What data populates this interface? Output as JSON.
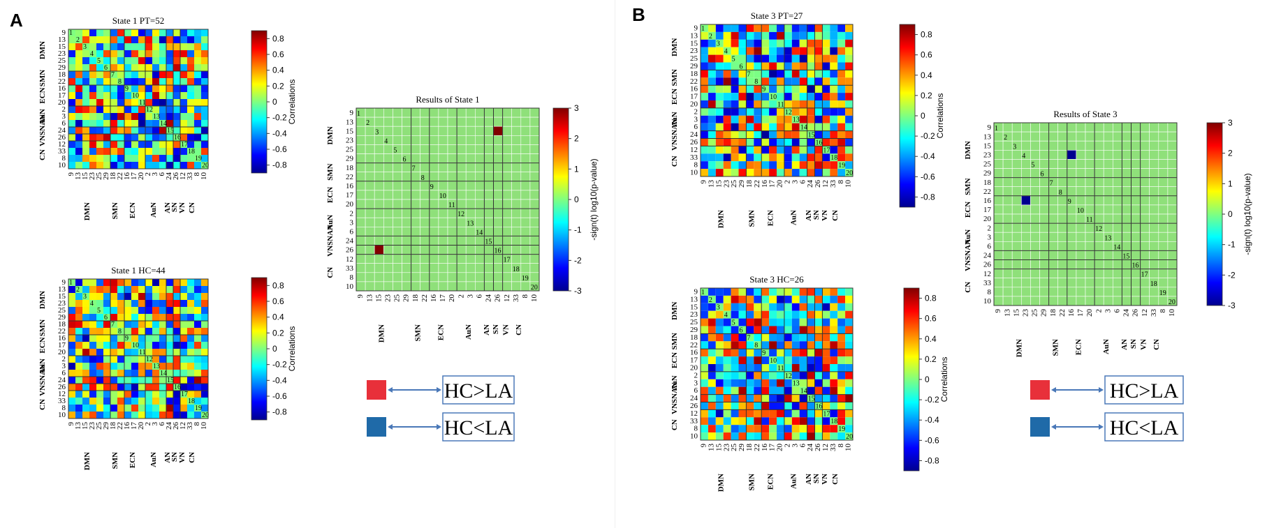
{
  "panel_labels": [
    "A",
    "B"
  ],
  "matrices": [
    {
      "id": "s1pt",
      "title": "State 1 PT=52",
      "seed": 11
    },
    {
      "id": "s1hc",
      "title": "State 1 HC=44",
      "seed": 23
    },
    {
      "id": "s3pt",
      "title": "State 3 PT=27",
      "seed": 37
    },
    {
      "id": "s3hc",
      "title": "State 3 HC=26",
      "seed": 53
    }
  ],
  "results": [
    {
      "id": "r1",
      "title": "Results of State 1"
    },
    {
      "id": "r3",
      "title": "Results of State 3"
    }
  ],
  "chart_data": [
    {
      "type": "heatmap",
      "title": "State 1 PT=52",
      "component_labels": [
        "9",
        "13",
        "15",
        "23",
        "25",
        "29",
        "18",
        "22",
        "16",
        "17",
        "20",
        "2",
        "3",
        "6",
        "24",
        "26",
        "12",
        "33",
        "8",
        "10"
      ],
      "diagonal_numbers": [
        "1",
        "2",
        "3",
        "4",
        "5",
        "6",
        "7",
        "8",
        "9",
        "10",
        "11",
        "12",
        "13",
        "14",
        "15",
        "16",
        "17",
        "18",
        "19",
        "20"
      ],
      "networks_y": [
        "DMN",
        "SMN",
        "ECN",
        "AuN",
        "VNSNAN",
        "CN"
      ],
      "networks_x": [
        "DMN",
        "SMN",
        "ECN",
        "AuN",
        "AN",
        "SN",
        "VN",
        "CN"
      ],
      "colorbar": {
        "label": "Correlations",
        "ticks": [
          "0.8",
          "0.6",
          "0.4",
          "0.2",
          "0",
          "-0.2",
          "-0.4",
          "-0.6",
          "-0.8"
        ],
        "range": [
          -0.9,
          0.9
        ]
      }
    },
    {
      "type": "heatmap",
      "title": "State 1 HC=44",
      "component_labels": [
        "9",
        "13",
        "15",
        "23",
        "25",
        "29",
        "18",
        "22",
        "16",
        "17",
        "20",
        "2",
        "3",
        "6",
        "24",
        "26",
        "12",
        "33",
        "8",
        "10"
      ],
      "colorbar": {
        "label": "Correlations",
        "ticks": [
          "0.8",
          "0.6",
          "0.4",
          "0.2",
          "0",
          "-0.2",
          "-0.4",
          "-0.6",
          "-0.8"
        ],
        "range": [
          -0.9,
          0.9
        ]
      }
    },
    {
      "type": "heatmap",
      "title": "Results of State 1",
      "component_labels": [
        "9",
        "13",
        "15",
        "23",
        "25",
        "29",
        "18",
        "22",
        "16",
        "17",
        "20",
        "2",
        "3",
        "6",
        "24",
        "26",
        "12",
        "33",
        "8",
        "10"
      ],
      "significant_cells": [
        {
          "row": "15",
          "col": "26",
          "value": 3
        },
        {
          "row": "26",
          "col": "15",
          "value": 3
        }
      ],
      "colorbar": {
        "label": "-sign(t) log10(p-value)",
        "ticks": [
          "3",
          "2",
          "1",
          "0",
          "-1",
          "-2",
          "-3"
        ],
        "range": [
          -3,
          3
        ]
      }
    },
    {
      "type": "heatmap",
      "title": "State 3 PT=27",
      "component_labels": [
        "9",
        "13",
        "15",
        "23",
        "25",
        "29",
        "18",
        "22",
        "16",
        "17",
        "20",
        "2",
        "3",
        "6",
        "24",
        "26",
        "12",
        "33",
        "8",
        "10"
      ],
      "colorbar": {
        "label": "Correlations",
        "ticks": [
          "0.8",
          "0.6",
          "0.4",
          "0.2",
          "0",
          "-0.2",
          "-0.4",
          "-0.6",
          "-0.8"
        ],
        "range": [
          -0.9,
          0.9
        ]
      }
    },
    {
      "type": "heatmap",
      "title": "State 3 HC=26",
      "component_labels": [
        "9",
        "13",
        "15",
        "23",
        "25",
        "29",
        "18",
        "22",
        "16",
        "17",
        "20",
        "2",
        "3",
        "6",
        "24",
        "26",
        "12",
        "33",
        "8",
        "10"
      ],
      "colorbar": {
        "label": "Correlations",
        "ticks": [
          "0.8",
          "0.6",
          "0.4",
          "0.2",
          "0",
          "-0.2",
          "-0.4",
          "-0.6",
          "-0.8"
        ],
        "range": [
          -0.9,
          0.9
        ]
      }
    },
    {
      "type": "heatmap",
      "title": "Results of State 3",
      "component_labels": [
        "9",
        "13",
        "15",
        "23",
        "25",
        "29",
        "18",
        "22",
        "16",
        "17",
        "20",
        "2",
        "3",
        "6",
        "24",
        "26",
        "12",
        "33",
        "8",
        "10"
      ],
      "significant_cells": [
        {
          "row": "23",
          "col": "16",
          "value": -3
        },
        {
          "row": "16",
          "col": "23",
          "value": -3
        }
      ],
      "colorbar": {
        "label": "-sign(t) log10(p-value)",
        "ticks": [
          "3",
          "2",
          "1",
          "0",
          "-1",
          "-2",
          "-3"
        ],
        "range": [
          -3,
          3
        ]
      }
    }
  ],
  "legend": {
    "red_label": "HC>LA",
    "blue_label": "HC<LA",
    "red_color": "#e8303a",
    "blue_color": "#1f6aa8"
  },
  "colors": {
    "background": "#8fe07a",
    "grid": "#ffffff",
    "divider": "#333333"
  }
}
